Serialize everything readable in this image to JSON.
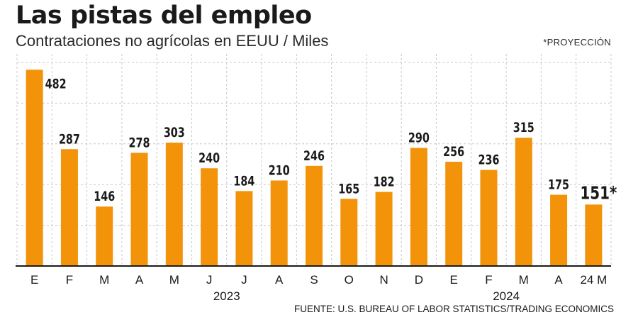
{
  "header": {
    "title": "Las pistas del empleo",
    "subtitle": "Contrataciones no agrícolas en EEUU / Miles",
    "note": "*PROYECCIÓN"
  },
  "footer": {
    "source": "FUENTE: U.S. BUREAU OF LABOR STATISTICS/TRADING ECONOMICS"
  },
  "colors": {
    "bar": "#f2930a",
    "grid": "#c8c8c8",
    "axis": "#1a1a1a"
  },
  "chart_data": {
    "type": "bar",
    "title": "Las pistas del empleo",
    "subtitle": "Contrataciones no agrícolas en EEUU / Miles",
    "categories": [
      "E",
      "F",
      "M",
      "A",
      "M",
      "J",
      "J",
      "A",
      "S",
      "O",
      "N",
      "D",
      "E",
      "F",
      "M",
      "A",
      "24 M"
    ],
    "values": [
      482,
      287,
      146,
      278,
      303,
      240,
      184,
      210,
      246,
      165,
      182,
      290,
      256,
      236,
      315,
      175,
      151
    ],
    "value_labels": [
      "482",
      "287",
      "146",
      "278",
      "303",
      "240",
      "184",
      "210",
      "246",
      "165",
      "182",
      "290",
      "256",
      "236",
      "315",
      "175",
      "151*"
    ],
    "year_labels": [
      {
        "label": "2023",
        "category_index": 5.5
      },
      {
        "label": "2024",
        "category_index": 13.5
      }
    ],
    "ylim": [
      0,
      500
    ],
    "y_gridlines": [
      100,
      200,
      300,
      400,
      500
    ],
    "grid": true,
    "legend": "none",
    "projected_index": 16
  }
}
